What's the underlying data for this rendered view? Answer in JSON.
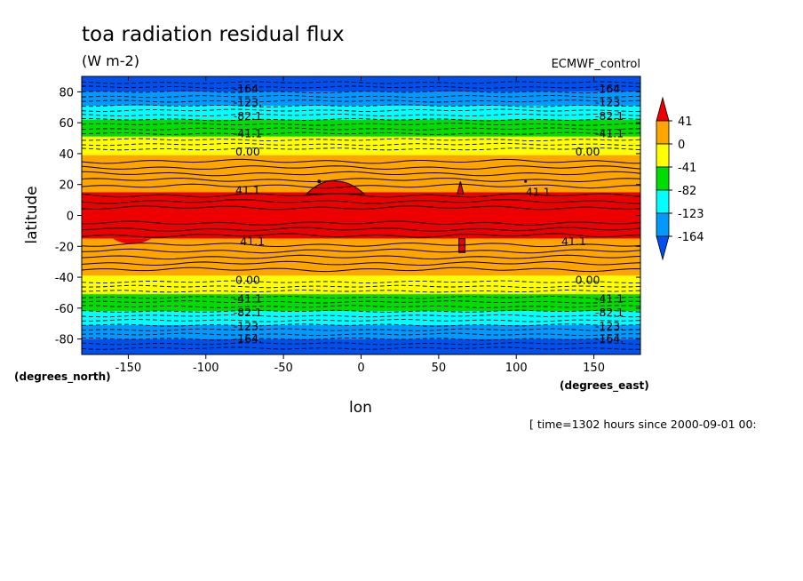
{
  "chart_data": {
    "type": "heatmap",
    "title": "toa radiation residual flux",
    "units": "(W m-2)",
    "source_label": "ECMWF_control",
    "xlabel": "lon",
    "ylabel": "latitude",
    "x_unit_label": "(degrees_east)",
    "y_unit_label": "(degrees_north)",
    "xlim": [
      -180,
      180
    ],
    "ylim": [
      -90,
      90
    ],
    "x_ticks": [
      -150,
      -100,
      -50,
      0,
      50,
      100,
      150
    ],
    "x_tick_labels": [
      "-150",
      "-100",
      "-50",
      "0",
      "50",
      "100",
      "150"
    ],
    "y_ticks": [
      -80,
      -60,
      -40,
      -20,
      0,
      20,
      40,
      60,
      80
    ],
    "y_tick_labels": [
      "-80",
      "-60",
      "-40",
      "-20",
      "0",
      "20",
      "40",
      "60",
      "80"
    ],
    "colorbar": {
      "labels": [
        "41",
        "0",
        "-41",
        "-82",
        "-123",
        "-164"
      ],
      "colors": [
        "#ee0000",
        "#ffa500",
        "#ffff00",
        "#00dd00",
        "#00ffff",
        "#0099ff",
        "#0050ee"
      ]
    },
    "bands": [
      {
        "from": 90,
        "to": 80,
        "color": "#0050ee"
      },
      {
        "from": 80,
        "to": 71,
        "color": "#0099ff"
      },
      {
        "from": 71,
        "to": 62,
        "color": "#00ffff"
      },
      {
        "from": 62,
        "to": 51,
        "color": "#00dd00"
      },
      {
        "from": 51,
        "to": 39,
        "color": "#ffff00"
      },
      {
        "from": 39,
        "to": 15,
        "color": "#ffa500"
      },
      {
        "from": 15,
        "to": -15,
        "color": "#ee0000"
      },
      {
        "from": -15,
        "to": -39,
        "color": "#ffa500"
      },
      {
        "from": -39,
        "to": -51,
        "color": "#ffff00"
      },
      {
        "from": -51,
        "to": -62,
        "color": "#00dd00"
      },
      {
        "from": -62,
        "to": -71,
        "color": "#00ffff"
      },
      {
        "from": -71,
        "to": -80,
        "color": "#0099ff"
      },
      {
        "from": -80,
        "to": -90,
        "color": "#0050ee"
      }
    ],
    "solid_contours": [
      13,
      9,
      5,
      -5,
      -9,
      -13,
      19,
      23,
      27,
      31,
      35,
      -19,
      -23,
      -27,
      -31,
      -35
    ],
    "dashed_contours": [
      43,
      46,
      49,
      53,
      56,
      59,
      62,
      65,
      68,
      71,
      74,
      77,
      80,
      83,
      86,
      -43,
      -46,
      -49,
      -53,
      -56,
      -59,
      -62,
      -65,
      -68,
      -71,
      -74,
      -77,
      -80,
      -83,
      -86
    ],
    "contour_labels": [
      {
        "text": "-164.",
        "lon": -73,
        "lat": 82
      },
      {
        "text": "-123.",
        "lon": -73,
        "lat": 73
      },
      {
        "text": "-82.1",
        "lon": -73,
        "lat": 64
      },
      {
        "text": "-41.1",
        "lon": -73,
        "lat": 53
      },
      {
        "text": "0.00",
        "lon": -73,
        "lat": 41
      },
      {
        "text": "41.1",
        "lon": -73,
        "lat": 16
      },
      {
        "text": "41.1",
        "lon": -70,
        "lat": -17
      },
      {
        "text": "0.00",
        "lon": -73,
        "lat": -42
      },
      {
        "text": "-41.1",
        "lon": -73,
        "lat": -54
      },
      {
        "text": "-82.1",
        "lon": -73,
        "lat": -63
      },
      {
        "text": "-123.",
        "lon": -73,
        "lat": -72
      },
      {
        "text": "-164.",
        "lon": -73,
        "lat": -80
      },
      {
        "text": "-164.",
        "lon": 160,
        "lat": 82
      },
      {
        "text": "-123.",
        "lon": 160,
        "lat": 73
      },
      {
        "text": "-82.1",
        "lon": 160,
        "lat": 64
      },
      {
        "text": "-41.1",
        "lon": 160,
        "lat": 53
      },
      {
        "text": "0.00",
        "lon": 146,
        "lat": 41
      },
      {
        "text": "41.1",
        "lon": 114,
        "lat": 15
      },
      {
        "text": "41.1",
        "lon": 137,
        "lat": -17
      },
      {
        "text": "0.00",
        "lon": 146,
        "lat": -42
      },
      {
        "text": "-41.1",
        "lon": 160,
        "lat": -54
      },
      {
        "text": "-82.1",
        "lon": 160,
        "lat": -63
      },
      {
        "text": "-123.",
        "lon": 160,
        "lat": -72
      },
      {
        "text": "-164.",
        "lon": 160,
        "lat": -80
      }
    ],
    "footer": "[ time=1302 hours since 2000-09-01 00:"
  }
}
